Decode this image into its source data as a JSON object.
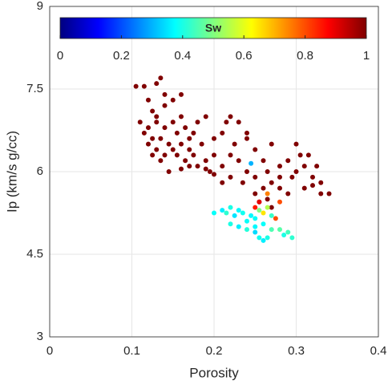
{
  "chart_data": {
    "type": "scatter",
    "xlabel": "Porosity",
    "ylabel": "Ip (km/s g/cc)",
    "xlim": [
      0,
      0.4
    ],
    "xticks": [
      0,
      0.1,
      0.2,
      0.3,
      0.4
    ],
    "ylim": [
      3,
      9
    ],
    "yticks": [
      3,
      4.5,
      6,
      7.5,
      9
    ],
    "grid": true,
    "colorbar": {
      "label": "Sw",
      "colormap": "jet",
      "clim": [
        0,
        1
      ],
      "cticks": [
        0,
        0.2,
        0.4,
        0.6,
        0.8,
        1
      ]
    },
    "x": [
      0.105,
      0.115,
      0.135,
      0.13,
      0.14,
      0.12,
      0.125,
      0.13,
      0.14,
      0.15,
      0.16,
      0.11,
      0.115,
      0.12,
      0.13,
      0.135,
      0.14,
      0.145,
      0.15,
      0.155,
      0.16,
      0.165,
      0.17,
      0.12,
      0.125,
      0.13,
      0.14,
      0.15,
      0.155,
      0.16,
      0.165,
      0.17,
      0.175,
      0.18,
      0.185,
      0.19,
      0.2,
      0.195,
      0.21,
      0.175,
      0.18,
      0.19,
      0.2,
      0.21,
      0.22,
      0.23,
      0.225,
      0.24,
      0.25,
      0.22,
      0.23,
      0.24,
      0.25,
      0.26,
      0.27,
      0.265,
      0.28,
      0.28,
      0.29,
      0.3,
      0.31,
      0.3,
      0.305,
      0.32,
      0.33,
      0.325,
      0.34,
      0.33,
      0.31,
      0.29,
      0.28,
      0.27,
      0.26,
      0.25,
      0.235,
      0.22,
      0.21,
      0.2,
      0.19,
      0.145,
      0.16,
      0.17,
      0.135,
      0.125,
      0.24,
      0.215,
      0.295,
      0.315,
      0.32,
      0.255,
      0.265,
      0.27,
      0.265,
      0.25,
      0.26,
      0.275,
      0.245,
      0.255,
      0.28,
      0.2,
      0.21,
      0.22,
      0.23,
      0.215,
      0.225,
      0.235,
      0.22,
      0.23,
      0.24,
      0.24,
      0.25,
      0.25,
      0.255,
      0.26,
      0.265,
      0.26,
      0.27,
      0.27,
      0.28,
      0.29,
      0.295,
      0.285,
      0.245,
      0.255,
      0.265,
      0.25
    ],
    "y": [
      7.55,
      7.55,
      7.7,
      7.6,
      7.4,
      7.3,
      7.1,
      7.0,
      7.2,
      7.3,
      7.4,
      6.9,
      6.7,
      6.8,
      6.9,
      6.6,
      6.8,
      6.5,
      6.9,
      6.7,
      7.0,
      6.8,
      6.6,
      6.5,
      6.6,
      6.4,
      6.3,
      6.4,
      6.3,
      6.5,
      6.2,
      6.4,
      6.3,
      6.1,
      6.5,
      6.2,
      6.3,
      6.0,
      6.1,
      6.7,
      6.9,
      7.0,
      6.6,
      6.7,
      7.0,
      6.9,
      6.5,
      6.6,
      6.4,
      6.3,
      6.2,
      6.0,
      5.9,
      6.2,
      6.5,
      6.0,
      5.9,
      6.1,
      6.2,
      6.0,
      6.1,
      6.5,
      6.3,
      5.9,
      5.8,
      6.1,
      5.6,
      5.6,
      5.7,
      5.6,
      5.7,
      5.8,
      5.7,
      5.6,
      5.8,
      5.9,
      5.8,
      5.95,
      6.05,
      6.0,
      6.05,
      6.1,
      6.2,
      6.3,
      6.7,
      6.9,
      5.9,
      6.3,
      5.75,
      5.45,
      5.5,
      5.35,
      5.6,
      5.35,
      5.25,
      5.15,
      6.15,
      5.45,
      5.45,
      5.25,
      5.3,
      5.35,
      5.3,
      5.25,
      5.2,
      5.25,
      5.05,
      5.0,
      5.1,
      4.95,
      5.0,
      4.9,
      4.8,
      4.75,
      4.8,
      5.05,
      4.95,
      5.2,
      4.95,
      4.9,
      4.8,
      4.85,
      5.2,
      5.3,
      5.35,
      5.15
    ],
    "sw": [
      1,
      1,
      1,
      1,
      1,
      1,
      1,
      1,
      1,
      1,
      1,
      1,
      1,
      1,
      1,
      1,
      1,
      1,
      1,
      1,
      1,
      1,
      1,
      1,
      1,
      1,
      1,
      1,
      1,
      1,
      1,
      1,
      1,
      1,
      1,
      1,
      1,
      1,
      1,
      1,
      1,
      1,
      1,
      1,
      1,
      1,
      1,
      1,
      1,
      1,
      1,
      1,
      1,
      1,
      1,
      1,
      1,
      1,
      1,
      1,
      1,
      1,
      1,
      1,
      1,
      1,
      1,
      1,
      1,
      1,
      1,
      1,
      1,
      1,
      1,
      1,
      1,
      1,
      1,
      1,
      1,
      1,
      1,
      1,
      1,
      1,
      1,
      1,
      1,
      1,
      1,
      1,
      0.75,
      0.85,
      0.65,
      0.8,
      0.3,
      0.9,
      0.8,
      0.38,
      0.36,
      0.4,
      0.37,
      0.42,
      0.35,
      0.39,
      0.4,
      0.36,
      0.38,
      0.41,
      0.37,
      0.34,
      0.39,
      0.36,
      0.4,
      0.38,
      0.45,
      0.43,
      0.46,
      0.44,
      0.42,
      0.4,
      0.37,
      0.5,
      0.55,
      0.38
    ]
  }
}
